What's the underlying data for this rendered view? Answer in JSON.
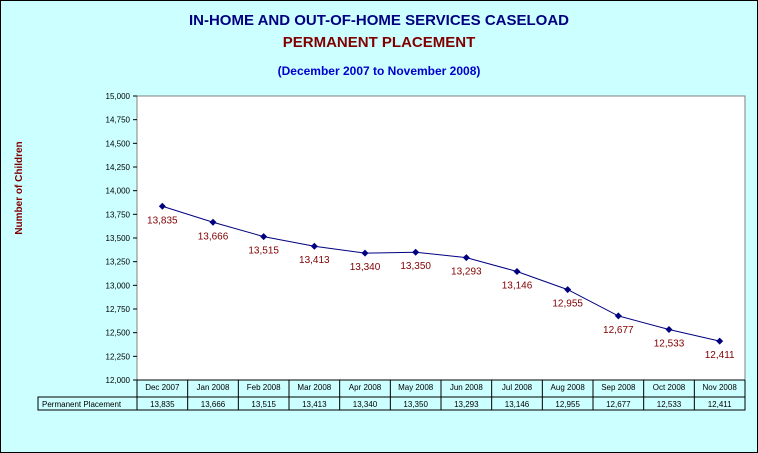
{
  "chart_data": {
    "type": "line",
    "title": "IN-HOME AND OUT-OF-HOME SERVICES CASELOAD",
    "subtitle": "PERMANENT PLACEMENT",
    "date_range": "(December 2007 to November 2008)",
    "ylabel": "Number of Children",
    "xlabel": "",
    "categories": [
      "Dec 2007",
      "Jan 2008",
      "Feb 2008",
      "Mar 2008",
      "Apr 2008",
      "May 2008",
      "Jun 2008",
      "Jul 2008",
      "Aug 2008",
      "Sep 2008",
      "Oct 2008",
      "Nov 2008"
    ],
    "series": [
      {
        "name": "Permanent Placement",
        "values": [
          13835,
          13666,
          13515,
          13413,
          13340,
          13350,
          13293,
          13146,
          12955,
          12677,
          12533,
          12411
        ]
      }
    ],
    "ylim": [
      12000,
      15000
    ],
    "yticks": [
      12000,
      12250,
      12500,
      12750,
      13000,
      13250,
      13500,
      13750,
      14000,
      14250,
      14500,
      14750,
      15000
    ],
    "grid": false,
    "data_table": true,
    "colors": {
      "line": "#000080",
      "marker": "#000080",
      "data_label": "#800000",
      "background": "#ccffff",
      "plot_area": "#ffffff"
    }
  }
}
